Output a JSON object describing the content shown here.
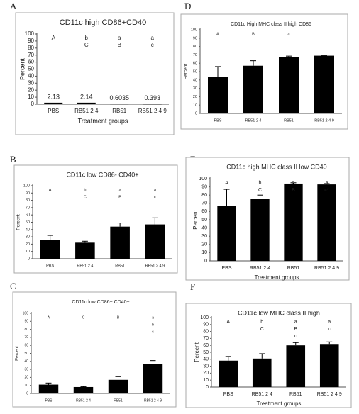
{
  "chart_data": [
    {
      "type": "bar",
      "panel": "A",
      "title": "CD11c high CD86+CD40",
      "ylabel": "Percent",
      "xlabel": "Treatment groups",
      "categories": [
        "PBS",
        "RB51 2 4",
        "RB51",
        "RB51 2 4 9"
      ],
      "values": [
        2.13,
        2.14,
        0.6035,
        0.393
      ],
      "value_labels": [
        "2.13",
        "2.14",
        "0.6035",
        "0.393"
      ],
      "letters": [
        [
          "A"
        ],
        [
          "b",
          "C"
        ],
        [
          "a",
          "B"
        ],
        [
          "a",
          "c"
        ]
      ],
      "color": "#000000",
      "ylim": [
        0,
        100
      ],
      "yticks": [
        0,
        10,
        20,
        30,
        40,
        50,
        60,
        70,
        80,
        90,
        100
      ]
    },
    {
      "type": "bar",
      "panel": "D",
      "title": "CD11c High MHC class II high CD86",
      "ylabel": "Percent",
      "categories": [
        "PBS",
        "RB51 2 4",
        "RB51",
        "RB51 2 4 9"
      ],
      "values": [
        44,
        57,
        67,
        69
      ],
      "errors": [
        12,
        6,
        1.5,
        0.5
      ],
      "letters": [
        [
          "A"
        ],
        [
          "B"
        ],
        [
          "a"
        ],
        []
      ],
      "color": "#000000",
      "ylim": [
        0,
        100
      ],
      "yticks": [
        0,
        10,
        20,
        30,
        40,
        50,
        60,
        70,
        80,
        90,
        100
      ]
    },
    {
      "type": "bar",
      "panel": "B",
      "title": "CD11c low CD86- CD40+",
      "ylabel": "Percent",
      "categories": [
        "PBS",
        "RB51 2 4",
        "RB51",
        "RB51 2 4 9"
      ],
      "values": [
        26,
        22,
        44,
        47
      ],
      "errors": [
        6,
        2,
        5,
        9
      ],
      "letters": [
        [
          "A"
        ],
        [
          "b",
          "C"
        ],
        [
          "a",
          "B"
        ],
        [
          "a",
          "c"
        ]
      ],
      "color": "#000000",
      "ylim": [
        0,
        100
      ],
      "yticks": [
        0,
        10,
        20,
        30,
        40,
        50,
        60,
        70,
        80,
        90,
        100
      ]
    },
    {
      "type": "bar",
      "panel": "E",
      "title": "CD11c high MHC class II low CD40",
      "ylabel": "Percent",
      "xlabel": "Treatment groups",
      "categories": [
        "PBS",
        "RB51 2 4",
        "RB51",
        "RB51 2 4 9"
      ],
      "values": [
        67,
        75,
        94,
        93
      ],
      "errors": [
        20,
        5,
        1,
        1
      ],
      "letters": [
        [
          "A"
        ],
        [
          "b",
          "C"
        ],
        [
          "a",
          "B"
        ],
        [
          "a",
          "c*"
        ]
      ],
      "color": "#000000",
      "ylim": [
        0,
        100
      ],
      "yticks": [
        0,
        10,
        20,
        30,
        40,
        50,
        60,
        70,
        80,
        90,
        100
      ]
    },
    {
      "type": "bar",
      "panel": "C",
      "title": "CD11c low CD86+ CD40+",
      "ylabel": "Percent",
      "categories": [
        "PBS",
        "RB51 2 4",
        "RB51",
        "RB51 2 4 9"
      ],
      "values": [
        11,
        8,
        17,
        37
      ],
      "errors": [
        2,
        0.5,
        4,
        4
      ],
      "letters": [
        [
          "A"
        ],
        [
          "C"
        ],
        [
          "B"
        ],
        [
          "a",
          "b",
          "c"
        ]
      ],
      "color": "#000000",
      "ylim": [
        0,
        100
      ],
      "yticks": [
        0,
        10,
        20,
        30,
        40,
        50,
        60,
        70,
        80,
        90,
        100
      ]
    },
    {
      "type": "bar",
      "panel": "F",
      "title": "CD11c low MHC class II high",
      "ylabel": "Percent",
      "xlabel": "Treatment groups",
      "categories": [
        "PBS",
        "RB51 2 4",
        "RB51",
        "RB51 2 4 9"
      ],
      "values": [
        38,
        41,
        60,
        62
      ],
      "errors": [
        6,
        7,
        4,
        3
      ],
      "letters": [
        [
          "A"
        ],
        [
          "b",
          "C"
        ],
        [
          "a",
          "B",
          "c"
        ],
        [
          "a",
          "c"
        ]
      ],
      "color": "#000000",
      "ylim": [
        0,
        100
      ],
      "yticks": [
        0,
        10,
        20,
        30,
        40,
        50,
        60,
        70,
        80,
        90,
        100
      ]
    }
  ]
}
